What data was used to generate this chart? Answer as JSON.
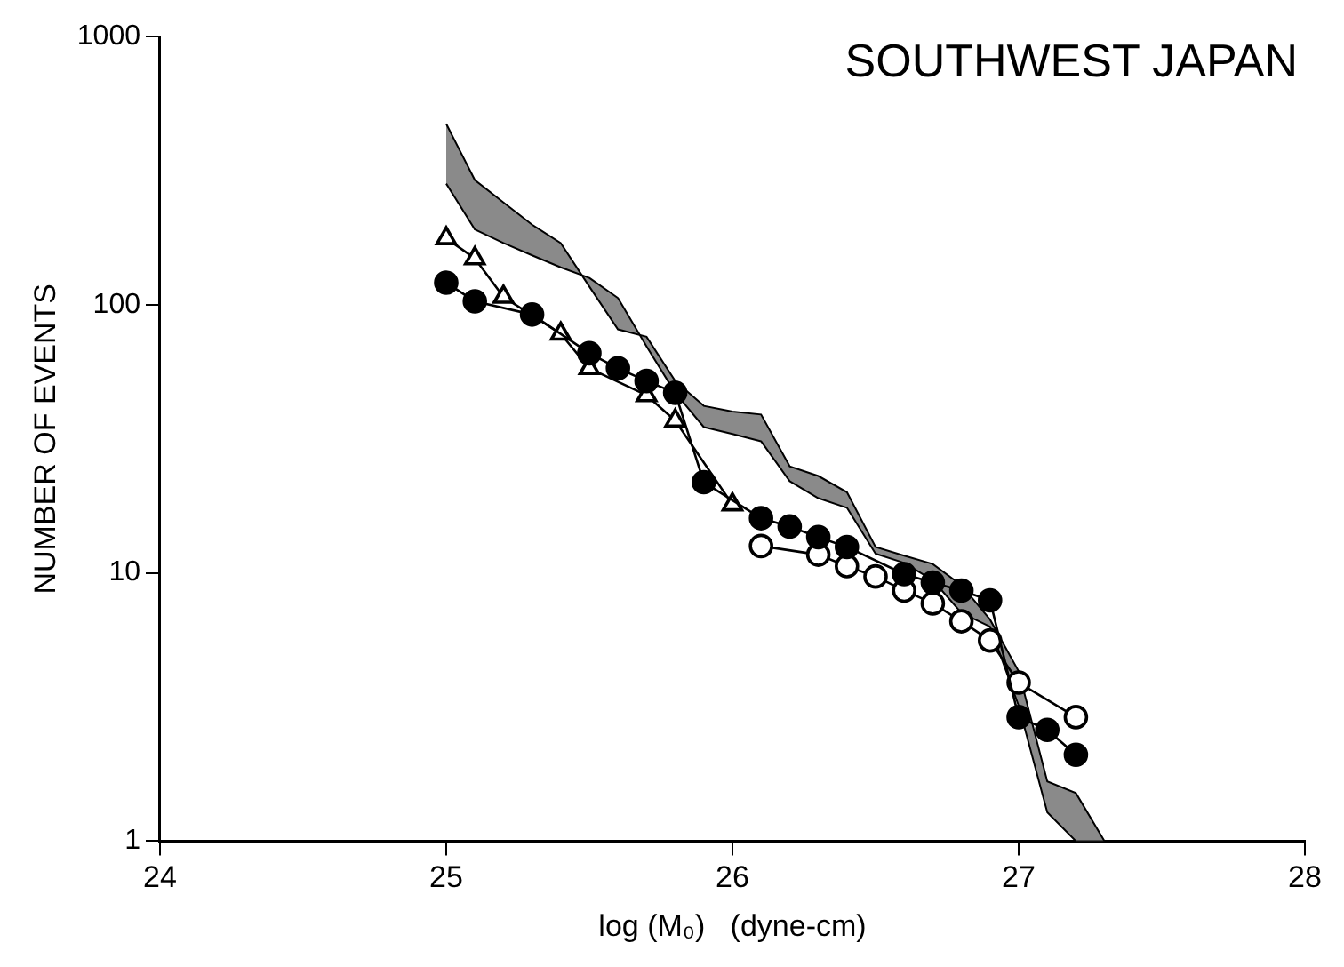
{
  "chart_data": {
    "type": "line",
    "title": "SOUTHWEST JAPAN",
    "xlabel": "log (M₀)   (dyne-cm)",
    "ylabel": "NUMBER OF EVENTS",
    "xlim": [
      24,
      28
    ],
    "xticks": [
      24,
      25,
      26,
      27,
      28
    ],
    "ylim": [
      1,
      1000
    ],
    "yticks": [
      1,
      10,
      100,
      1000
    ],
    "log": "y",
    "grid": false,
    "legend": false,
    "line_style": "solid",
    "series": [
      {
        "type": "line",
        "color": "#000000",
        "marker": "none",
        "x": [
          25.0,
          25.1,
          25.2,
          25.3,
          25.4,
          25.5,
          25.6,
          25.7,
          25.8,
          25.9,
          26.0,
          26.1,
          26.2,
          26.3,
          26.4,
          26.5,
          26.6,
          26.7,
          26.8,
          26.9,
          27.0,
          27.1,
          27.2,
          27.3
        ],
        "values": [
          283,
          191,
          170,
          153,
          138,
          126,
          106,
          70,
          47,
          35,
          33,
          31,
          22,
          19,
          17.5,
          11.8,
          10.9,
          9.4,
          7.1,
          6.3,
          3.2,
          1.28,
          1.0,
          1.0
        ]
      },
      {
        "type": "area",
        "color": "#8a8a8a",
        "x": [
          25.0,
          25.1,
          25.2,
          25.3,
          25.4,
          25.5,
          25.6,
          25.7,
          25.8,
          25.9,
          26.0,
          26.1,
          26.2,
          26.3,
          26.4,
          26.5,
          26.6,
          26.7,
          26.8,
          26.9,
          27.0,
          27.1,
          27.2,
          27.3
        ],
        "values": [
          473,
          292,
          241,
          199,
          170,
          117,
          81,
          76,
          52,
          42,
          40,
          39,
          25,
          23,
          20,
          12.5,
          11.6,
          10.8,
          9.0,
          6.7,
          4.3,
          1.67,
          1.51,
          1.0
        ]
      },
      {
        "type": "line",
        "color": "#000000",
        "marker": "circle",
        "x": [
          25.0,
          25.1,
          25.3,
          25.5,
          25.6,
          25.7,
          25.8,
          25.9,
          26.1,
          26.2,
          26.3,
          26.4,
          26.6,
          26.7,
          26.8,
          26.9,
          27.0,
          27.1,
          27.2
        ],
        "values": [
          121,
          103,
          92,
          66,
          58,
          52,
          47,
          21.8,
          16.0,
          14.9,
          13.6,
          12.5,
          9.9,
          9.2,
          8.6,
          7.9,
          2.9,
          2.6,
          2.1
        ]
      },
      {
        "type": "line",
        "color": "#ffffff",
        "marker": "triangle",
        "x": [
          25.0,
          25.1,
          25.2,
          25.4,
          25.5,
          25.7,
          25.8,
          26.0
        ],
        "values": [
          177,
          149,
          107,
          78,
          58,
          46,
          37,
          18.0
        ]
      },
      {
        "type": "line",
        "color": "#ffffff",
        "marker": "circle",
        "x": [
          26.1,
          26.3,
          26.4,
          26.5,
          26.6,
          26.7,
          26.8,
          26.9,
          27.0,
          27.2
        ],
        "values": [
          12.6,
          11.7,
          10.6,
          9.7,
          8.6,
          7.7,
          6.6,
          5.6,
          3.9,
          2.9
        ]
      }
    ]
  }
}
